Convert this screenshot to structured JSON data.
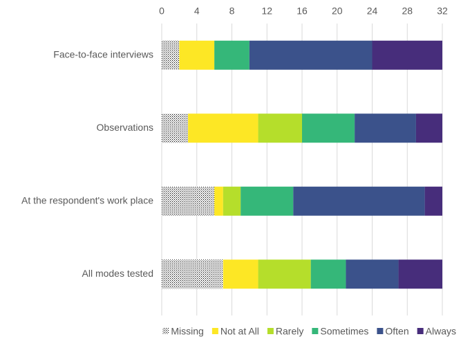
{
  "chart_data": {
    "type": "stacked_barh",
    "categories": [
      "Face-to-face interviews",
      "Observations",
      "At the respondent's work place",
      "All modes tested"
    ],
    "series": [
      {
        "name": "Missing",
        "color": "#000000",
        "pattern": "dots",
        "values": [
          2,
          3,
          6,
          7
        ]
      },
      {
        "name": "Not at All",
        "color": "#fde725",
        "values": [
          4,
          8,
          1,
          4
        ]
      },
      {
        "name": "Rarely",
        "color": "#b5de2b",
        "values": [
          0,
          5,
          2,
          6
        ]
      },
      {
        "name": "Sometimes",
        "color": "#35b779",
        "values": [
          4,
          6,
          6,
          4
        ]
      },
      {
        "name": "Often",
        "color": "#3b528b",
        "values": [
          14,
          7,
          15,
          6
        ]
      },
      {
        "name": "Always",
        "color": "#472d7b",
        "values": [
          8,
          3,
          2,
          5
        ]
      }
    ],
    "xlim": [
      0,
      32
    ],
    "xticks": [
      0,
      4,
      8,
      12,
      16,
      20,
      24,
      28,
      32
    ],
    "grid": true,
    "legend": "bottom"
  }
}
